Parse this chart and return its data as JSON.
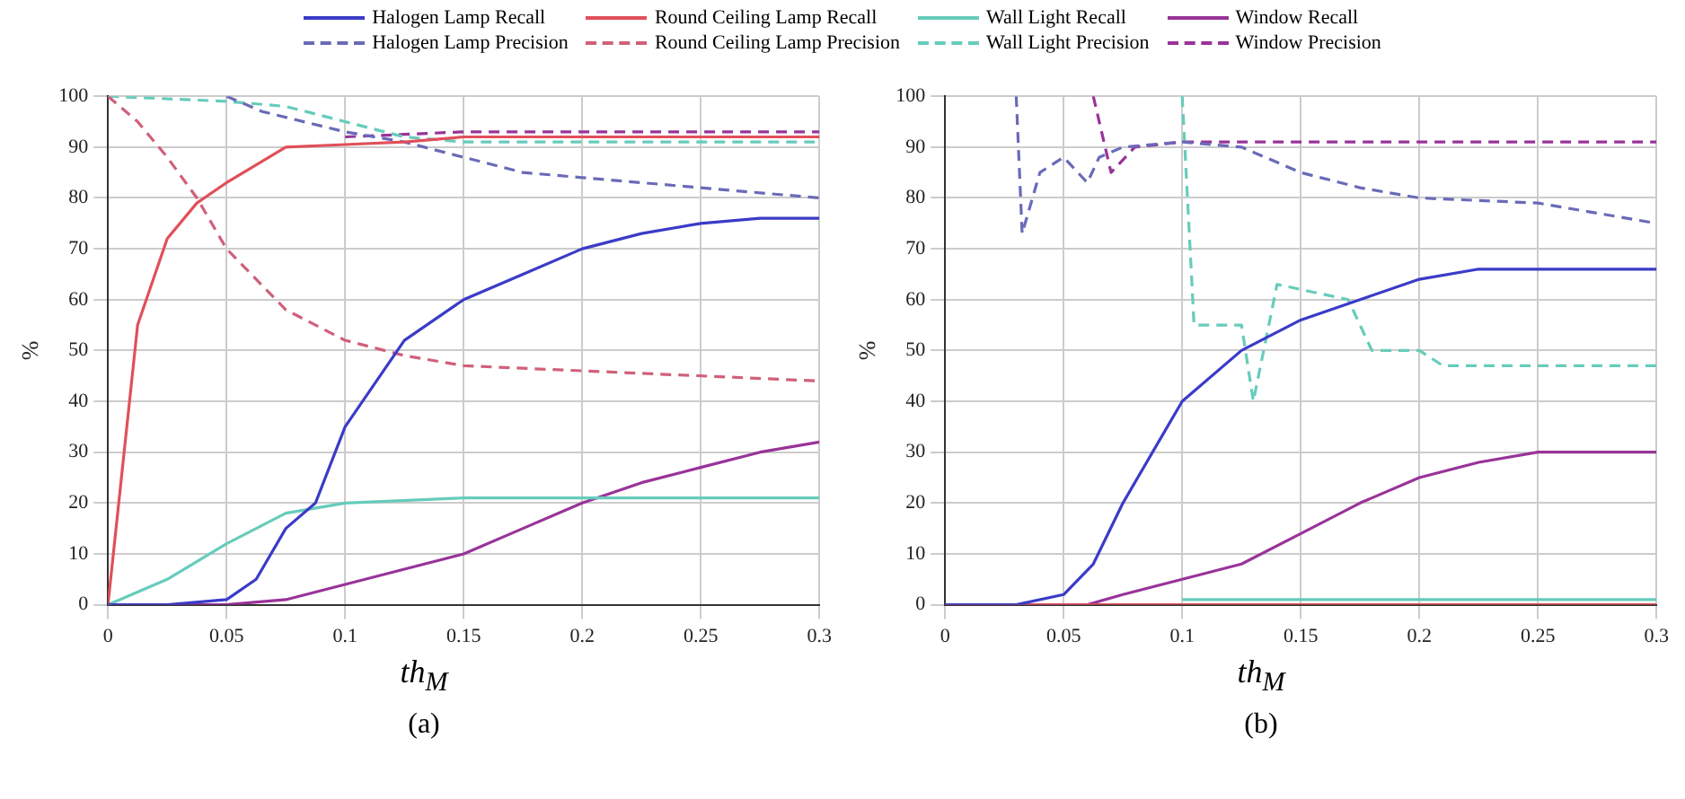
{
  "chart_data": [
    {
      "type": "line",
      "title": "(a)",
      "xlabel": "th$_{M}$",
      "ylabel": "%",
      "xlim": [
        0,
        0.3
      ],
      "ylim": [
        0,
        100
      ],
      "xticks": [
        0,
        0.05,
        0.1,
        0.15,
        0.2,
        0.25,
        0.3
      ],
      "yticks": [
        0,
        10,
        20,
        30,
        40,
        50,
        60,
        70,
        80,
        90,
        100
      ],
      "grid": true,
      "legend": "top",
      "marker": "none",
      "series": [
        {
          "name": "Halogen Lamp Recall",
          "color": "#3b3bc8",
          "line_style": "solid",
          "x": [
            0,
            0.025,
            0.05,
            0.0625,
            0.075,
            0.0875,
            0.1,
            0.125,
            0.15,
            0.175,
            0.2,
            0.225,
            0.25,
            0.275,
            0.3
          ],
          "values": [
            0,
            0,
            1,
            5,
            15,
            20,
            35,
            52,
            60,
            65,
            70,
            73,
            75,
            76,
            76
          ]
        },
        {
          "name": "Round Ceiling Lamp Recall",
          "color": "#e0505a",
          "line_style": "solid",
          "x": [
            0,
            0.0125,
            0.025,
            0.0375,
            0.05,
            0.075,
            0.1,
            0.125,
            0.15,
            0.2,
            0.25,
            0.3
          ],
          "values": [
            0,
            55,
            72,
            79,
            83,
            90,
            90.5,
            91,
            92,
            92,
            92,
            92
          ]
        },
        {
          "name": "Wall Light Recall",
          "color": "#66ccbb",
          "line_style": "solid",
          "x": [
            0,
            0.025,
            0.05,
            0.075,
            0.1,
            0.15,
            0.2,
            0.25,
            0.3
          ],
          "values": [
            0,
            5,
            12,
            18,
            20,
            21,
            21,
            21,
            21
          ]
        },
        {
          "name": "Window Recall",
          "color": "#993399",
          "line_style": "solid",
          "x": [
            0,
            0.05,
            0.075,
            0.1,
            0.125,
            0.15,
            0.175,
            0.2,
            0.225,
            0.25,
            0.275,
            0.3
          ],
          "values": [
            0,
            0,
            1,
            4,
            7,
            10,
            15,
            20,
            24,
            27,
            30,
            32
          ]
        },
        {
          "name": "Halogen Lamp Precision",
          "color": "#6a6ab8",
          "line_style": "dashed",
          "x": [
            0.05,
            0.065,
            0.1,
            0.125,
            0.15,
            0.175,
            0.2,
            0.25,
            0.3
          ],
          "values": [
            100,
            97,
            93,
            91,
            88,
            85,
            84,
            82,
            80
          ]
        },
        {
          "name": "Round Ceiling Lamp Precision",
          "color": "#d0607a",
          "line_style": "dashed",
          "x": [
            0,
            0.0125,
            0.025,
            0.0375,
            0.05,
            0.075,
            0.1,
            0.125,
            0.15,
            0.2,
            0.25,
            0.3
          ],
          "values": [
            100,
            95,
            88,
            80,
            70,
            58,
            52,
            49,
            47,
            46,
            45,
            44
          ]
        },
        {
          "name": "Wall Light Precision",
          "color": "#66ccbb",
          "line_style": "dashed",
          "x": [
            0,
            0.05,
            0.075,
            0.1,
            0.125,
            0.15,
            0.2,
            0.25,
            0.3
          ],
          "values": [
            100,
            99,
            98,
            95,
            92,
            91,
            91,
            91,
            91
          ]
        },
        {
          "name": "Window Precision",
          "color": "#993399",
          "line_style": "dashed",
          "x": [
            0.1,
            0.15,
            0.2,
            0.25,
            0.3
          ],
          "values": [
            92,
            93,
            93,
            93,
            93
          ]
        }
      ]
    },
    {
      "type": "line",
      "title": "(b)",
      "xlabel": "th$_{M}$",
      "ylabel": "%",
      "xlim": [
        0,
        0.3
      ],
      "ylim": [
        0,
        100
      ],
      "xticks": [
        0,
        0.05,
        0.1,
        0.15,
        0.2,
        0.25,
        0.3
      ],
      "yticks": [
        0,
        10,
        20,
        30,
        40,
        50,
        60,
        70,
        80,
        90,
        100
      ],
      "grid": true,
      "marker": "none",
      "series": [
        {
          "color": "#3b3bc8",
          "line_style": "solid",
          "x": [
            0,
            0.03,
            0.05,
            0.0625,
            0.075,
            0.0875,
            0.1,
            0.125,
            0.15,
            0.175,
            0.2,
            0.225,
            0.25,
            0.3
          ],
          "values": [
            0,
            0,
            2,
            8,
            20,
            30,
            40,
            50,
            56,
            60,
            64,
            66,
            66,
            66
          ]
        },
        {
          "color": "#e0505a",
          "line_style": "solid",
          "x": [
            0,
            0.3
          ],
          "values": [
            0,
            0
          ]
        },
        {
          "color": "#66ccbb",
          "line_style": "solid",
          "x": [
            0.1,
            0.3
          ],
          "values": [
            1,
            1
          ]
        },
        {
          "color": "#993399",
          "line_style": "solid",
          "x": [
            0,
            0.06,
            0.075,
            0.1,
            0.125,
            0.15,
            0.175,
            0.2,
            0.225,
            0.25,
            0.3
          ],
          "values": [
            0,
            0,
            2,
            5,
            8,
            14,
            20,
            25,
            28,
            30,
            30
          ]
        },
        {
          "color": "#6a6ab8",
          "line_style": "dashed",
          "x": [
            0.03,
            0.0325,
            0.04,
            0.05,
            0.06,
            0.065,
            0.075,
            0.1,
            0.125,
            0.15,
            0.175,
            0.2,
            0.25,
            0.3
          ],
          "values": [
            100,
            73,
            85,
            88,
            83,
            88,
            90,
            91,
            90,
            85,
            82,
            80,
            79,
            75
          ]
        },
        {
          "color": "#66ccbb",
          "line_style": "dashed",
          "x": [
            0.1,
            0.105,
            0.125,
            0.13,
            0.14,
            0.17,
            0.18,
            0.2,
            0.21,
            0.3
          ],
          "values": [
            100,
            55,
            55,
            40,
            63,
            60,
            50,
            50,
            47,
            47
          ]
        },
        {
          "color": "#993399",
          "line_style": "dashed",
          "x": [
            0.0625,
            0.07,
            0.08,
            0.1,
            0.3
          ],
          "values": [
            100,
            85,
            90,
            91,
            91
          ]
        }
      ]
    }
  ]
}
